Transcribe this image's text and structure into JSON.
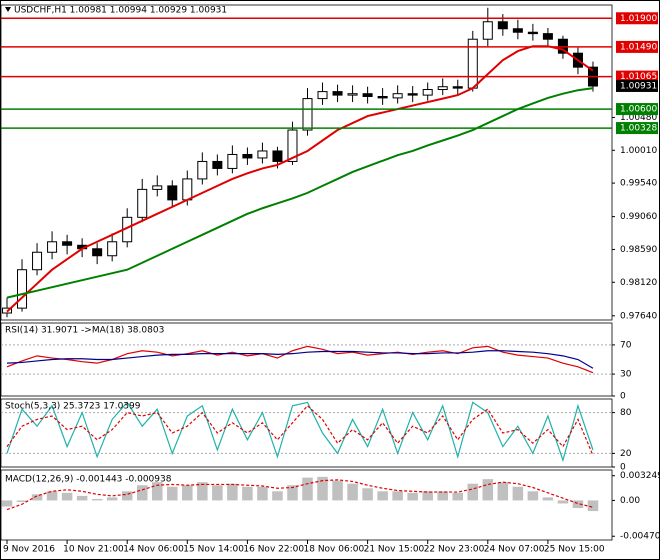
{
  "chart_data": [
    {
      "type": "candlestick",
      "title": "USDCHF,H1  1.00981 1.00994 1.00929 1.00931",
      "categories": [
        "9 Nov 2016",
        null,
        null,
        null,
        "10 Nov 21:00",
        null,
        null,
        null,
        "14 Nov 06:00",
        null,
        null,
        null,
        "15 Nov 14:00",
        null,
        null,
        null,
        "16 Nov 22:00",
        null,
        null,
        null,
        "18 Nov 06:00",
        null,
        null,
        null,
        "21 Nov 15:00",
        null,
        null,
        null,
        "22 Nov 23:00",
        null,
        null,
        null,
        "24 Nov 07:00",
        null,
        null,
        null,
        "25 Nov 15:00",
        null,
        null,
        null
      ],
      "open": [
        0.9768,
        0.9775,
        0.983,
        0.9855,
        0.987,
        0.9865,
        0.986,
        0.985,
        0.987,
        0.9905,
        0.9945,
        0.995,
        0.993,
        0.996,
        0.9985,
        0.9975,
        0.9995,
        0.999,
        1.0,
        0.9985,
        1.003,
        1.0075,
        1.0085,
        1.008,
        1.0082,
        1.0078,
        1.0076,
        1.0082,
        1.008,
        1.0088,
        1.0092,
        1.009,
        1.016,
        1.0185,
        1.0175,
        1.017,
        1.0168,
        1.016,
        1.014,
        1.012
      ],
      "high": [
        0.979,
        0.9845,
        0.9868,
        0.9885,
        0.988,
        0.9875,
        0.9868,
        0.9882,
        0.9918,
        0.996,
        0.9965,
        0.9958,
        0.9972,
        0.9998,
        0.9995,
        1.0008,
        1.0005,
        1.0012,
        1.0006,
        1.0042,
        1.009,
        1.0098,
        1.0095,
        1.0094,
        1.0092,
        1.009,
        1.0094,
        1.0093,
        1.0098,
        1.0104,
        1.0102,
        1.0172,
        1.0205,
        1.0196,
        1.0188,
        1.0182,
        1.0176,
        1.0165,
        1.0148,
        1.0128
      ],
      "low": [
        0.9762,
        0.977,
        0.9822,
        0.9845,
        0.9852,
        0.9848,
        0.9838,
        0.9842,
        0.9862,
        0.9898,
        0.9935,
        0.992,
        0.9922,
        0.9952,
        0.9965,
        0.9968,
        0.998,
        0.9982,
        0.9975,
        0.998,
        1.0022,
        1.0066,
        1.007,
        1.007,
        1.0068,
        1.0066,
        1.0068,
        1.007,
        1.0072,
        1.008,
        1.008,
        1.0085,
        1.015,
        1.0165,
        1.016,
        1.0158,
        1.015,
        1.0132,
        1.011,
        1.0085
      ],
      "close": [
        0.9775,
        0.983,
        0.9855,
        0.987,
        0.9865,
        0.986,
        0.985,
        0.987,
        0.9905,
        0.9945,
        0.995,
        0.993,
        0.996,
        0.9985,
        0.9975,
        0.9995,
        0.999,
        1.0,
        0.9985,
        1.003,
        1.0075,
        1.0085,
        1.008,
        1.0082,
        1.0078,
        1.0076,
        1.0082,
        1.008,
        1.0088,
        1.0092,
        1.009,
        1.016,
        1.0185,
        1.0175,
        1.017,
        1.0168,
        1.016,
        1.014,
        1.012,
        1.0093
      ],
      "ma_lines": [
        {
          "color": "#e00000",
          "values": [
            0.977,
            0.979,
            0.981,
            0.983,
            0.9845,
            0.986,
            0.987,
            0.988,
            0.989,
            0.99,
            0.991,
            0.992,
            0.993,
            0.994,
            0.995,
            0.996,
            0.9968,
            0.9975,
            0.998,
            0.999,
            1.0,
            1.0015,
            1.003,
            1.004,
            1.005,
            1.0055,
            1.006,
            1.0065,
            1.007,
            1.0075,
            1.008,
            1.009,
            1.011,
            1.013,
            1.0143,
            1.015,
            1.015,
            1.0145,
            1.013,
            1.0115
          ]
        },
        {
          "color": "#008000",
          "values": [
            0.979,
            0.9795,
            0.98,
            0.9805,
            0.981,
            0.9815,
            0.982,
            0.9825,
            0.983,
            0.984,
            0.985,
            0.986,
            0.987,
            0.988,
            0.989,
            0.99,
            0.991,
            0.9918,
            0.9925,
            0.9932,
            0.994,
            0.995,
            0.996,
            0.997,
            0.9978,
            0.9986,
            0.9994,
            1.0,
            1.0008,
            1.0015,
            1.0022,
            1.003,
            1.004,
            1.005,
            1.006,
            1.0068,
            1.0076,
            1.0082,
            1.0087,
            1.009
          ]
        }
      ],
      "levels": [
        {
          "value": 1.019,
          "label": "1.01900",
          "color": "#e00000"
        },
        {
          "value": 1.0149,
          "label": "1.01490",
          "color": "#e00000"
        },
        {
          "value": 1.01065,
          "label": "1.01065",
          "color": "#e00000"
        },
        {
          "value": 1.006,
          "label": "1.00600",
          "color": "#008000"
        },
        {
          "value": 1.00328,
          "label": "1.00328",
          "color": "#008000"
        }
      ],
      "last_price": {
        "value": 1.00931,
        "label": "1.00931"
      },
      "ylim": [
        0.9758,
        1.0209
      ],
      "yticks": [
        {
          "value": 1.0048,
          "label": "1.00480"
        },
        {
          "value": 1.0001,
          "label": "1.00010"
        },
        {
          "value": 0.9954,
          "label": "0.99540"
        },
        {
          "value": 0.9906,
          "label": "0.99060"
        },
        {
          "value": 0.9859,
          "label": "0.98590"
        },
        {
          "value": 0.9812,
          "label": "0.98120"
        },
        {
          "value": 0.9764,
          "label": "0.97640"
        }
      ]
    },
    {
      "type": "line",
      "title": "RSI(14) 31.9071 ->MA(18) 38.0803",
      "series": [
        {
          "color": "#e00000",
          "dash": false,
          "values": [
            40,
            48,
            55,
            52,
            50,
            47,
            45,
            50,
            58,
            62,
            60,
            55,
            58,
            62,
            56,
            60,
            55,
            58,
            52,
            62,
            68,
            64,
            58,
            60,
            56,
            58,
            60,
            57,
            60,
            62,
            58,
            66,
            68,
            60,
            56,
            54,
            52,
            45,
            40,
            32
          ]
        },
        {
          "color": "#00008b",
          "dash": false,
          "values": [
            45,
            46,
            48,
            50,
            51,
            51,
            50,
            50,
            52,
            54,
            56,
            57,
            57,
            58,
            58,
            58,
            58,
            58,
            57,
            58,
            60,
            61,
            61,
            61,
            60,
            59,
            59,
            58,
            58,
            59,
            59,
            60,
            62,
            62,
            61,
            60,
            58,
            55,
            50,
            38
          ]
        }
      ],
      "ylim": [
        0,
        100
      ],
      "yticks": [
        70,
        30,
        0
      ]
    },
    {
      "type": "line",
      "title": "Stoch(5,3,3) 25.3723 17.0399",
      "series": [
        {
          "color": "#20b2aa",
          "dash": false,
          "values": [
            20,
            85,
            60,
            90,
            30,
            80,
            15,
            70,
            95,
            60,
            85,
            20,
            75,
            90,
            25,
            85,
            40,
            80,
            15,
            90,
            95,
            50,
            20,
            70,
            30,
            85,
            20,
            80,
            40,
            90,
            15,
            95,
            80,
            30,
            60,
            20,
            75,
            10,
            90,
            25
          ]
        },
        {
          "color": "#e00000",
          "dash": true,
          "values": [
            30,
            60,
            70,
            75,
            55,
            60,
            40,
            55,
            80,
            75,
            80,
            50,
            60,
            80,
            50,
            65,
            50,
            65,
            40,
            65,
            90,
            70,
            35,
            55,
            40,
            65,
            35,
            60,
            50,
            75,
            40,
            70,
            85,
            50,
            55,
            35,
            55,
            30,
            70,
            17
          ]
        }
      ],
      "ylim": [
        0,
        100
      ],
      "yticks": [
        80,
        20,
        0
      ]
    },
    {
      "type": "macd",
      "title": "MACD(12,26,9) -0.001443 -0.000938",
      "values": [
        -0.0008,
        -0.0002,
        0.0008,
        0.0012,
        0.001,
        0.0006,
        0.0002,
        0.0004,
        0.0012,
        0.002,
        0.0024,
        0.0018,
        0.002,
        0.0024,
        0.002,
        0.0022,
        0.0018,
        0.0018,
        0.0012,
        0.002,
        0.003,
        0.0031,
        0.0026,
        0.0022,
        0.0016,
        0.0012,
        0.0012,
        0.001,
        0.0012,
        0.0012,
        0.001,
        0.0022,
        0.0028,
        0.0024,
        0.0018,
        0.0012,
        0.0004,
        -0.0004,
        -0.001,
        -0.0014
      ],
      "color": "#c0c0c0",
      "signal": [
        -0.0012,
        -0.0005,
        0.0006,
        0.0012,
        0.0014,
        0.0012,
        0.0008,
        0.0006,
        0.0008,
        0.0014,
        0.002,
        0.0021,
        0.002,
        0.0021,
        0.0021,
        0.0021,
        0.002,
        0.0019,
        0.0016,
        0.0017,
        0.0022,
        0.0026,
        0.0027,
        0.0025,
        0.002,
        0.0016,
        0.0013,
        0.0012,
        0.0011,
        0.0011,
        0.0011,
        0.0015,
        0.0021,
        0.0024,
        0.0022,
        0.0017,
        0.001,
        0.0003,
        -0.0004,
        -0.0009
      ],
      "signal_color": "#e00000",
      "ylim": [
        -0.0052,
        0.004
      ],
      "yticks": [
        {
          "value": 0.003249,
          "label": "0.003249"
        },
        {
          "value": 0,
          "label": "0.00"
        },
        {
          "value": -0.004705,
          "label": "-0.004705"
        }
      ]
    }
  ]
}
